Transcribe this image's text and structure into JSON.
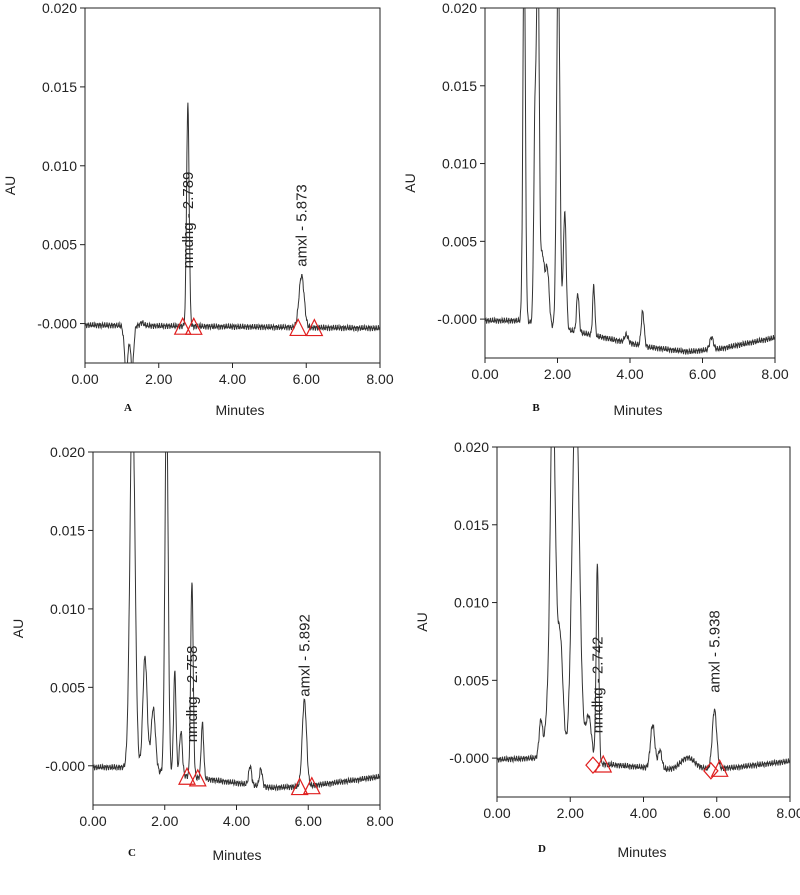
{
  "figure": {
    "panels": [
      "A",
      "B",
      "C",
      "D"
    ]
  },
  "chart_data": [
    {
      "id": "A",
      "type": "line",
      "panel_label": "A",
      "xlabel": "Minutes",
      "ylabel": "AU",
      "xlim": [
        0,
        8
      ],
      "ylim": [
        -0.0025,
        0.02
      ],
      "x_ticks": [
        "0.00",
        "2.00",
        "4.00",
        "6.00",
        "8.00"
      ],
      "y_ticks": [
        "-0.000",
        "0.005",
        "0.010",
        "0.015",
        "0.020"
      ],
      "y_tick_values": [
        0,
        0.005,
        0.01,
        0.015,
        0.02
      ],
      "baseline": [
        [
          0,
          -0.0001
        ],
        [
          8,
          -0.0003
        ]
      ],
      "peaks": [
        {
          "t": 1.12,
          "h": -0.0028,
          "w": 0.05
        },
        {
          "t": 1.28,
          "h": -0.0028,
          "w": 0.04
        },
        {
          "t": 1.55,
          "h": 0.0002,
          "w": 0.05
        },
        {
          "t": 2.789,
          "h": 0.014,
          "w": 0.035
        },
        {
          "t": 5.873,
          "h": 0.0033,
          "w": 0.07
        }
      ],
      "annotations": [
        {
          "label": "nmdhg - 2.789",
          "t": 2.789,
          "y": 0.0035
        },
        {
          "label": "amxl - 5.873",
          "t": 5.873,
          "y": 0.0036
        }
      ],
      "markers": [
        {
          "shape": "triangle",
          "t": 2.65
        },
        {
          "shape": "triangle",
          "t": 2.95
        },
        {
          "shape": "triangle",
          "t": 5.78
        },
        {
          "shape": "triangle",
          "t": 6.22
        }
      ]
    },
    {
      "id": "B",
      "type": "line",
      "panel_label": "B",
      "xlabel": "Minutes",
      "ylabel": "AU",
      "xlim": [
        0,
        8
      ],
      "ylim": [
        -0.0025,
        0.02
      ],
      "x_ticks": [
        "0.00",
        "2.00",
        "4.00",
        "6.00",
        "8.00"
      ],
      "y_ticks": [
        "-0.000",
        "0.005",
        "0.010",
        "0.015",
        "0.020"
      ],
      "y_tick_values": [
        0,
        0.005,
        0.01,
        0.015,
        0.02
      ],
      "baseline": [
        [
          0,
          -0.0001
        ],
        [
          1.0,
          -0.0001
        ],
        [
          2.5,
          -0.0008
        ],
        [
          4.5,
          -0.0018
        ],
        [
          5.6,
          -0.0021
        ],
        [
          6.5,
          -0.0019
        ],
        [
          8,
          -0.0012
        ]
      ],
      "peaks": [
        {
          "t": 1.08,
          "h": 0.024,
          "w": 0.035
        },
        {
          "t": 1.38,
          "h": 0.013,
          "w": 0.035
        },
        {
          "t": 1.46,
          "h": 0.024,
          "w": 0.035
        },
        {
          "t": 1.58,
          "h": 0.0045,
          "w": 0.06
        },
        {
          "t": 1.72,
          "h": 0.0035,
          "w": 0.05
        },
        {
          "t": 2.02,
          "h": 0.024,
          "w": 0.045
        },
        {
          "t": 2.2,
          "h": 0.0075,
          "w": 0.04
        },
        {
          "t": 2.56,
          "h": 0.0025,
          "w": 0.035
        },
        {
          "t": 3.0,
          "h": 0.0032,
          "w": 0.03
        },
        {
          "t": 3.9,
          "h": 0.0005,
          "w": 0.05
        },
        {
          "t": 4.35,
          "h": 0.0022,
          "w": 0.04
        },
        {
          "t": 6.25,
          "h": 0.0008,
          "w": 0.05
        }
      ],
      "annotations": [],
      "markers": []
    },
    {
      "id": "C",
      "type": "line",
      "panel_label": "C",
      "xlabel": "Minutes",
      "ylabel": "AU",
      "xlim": [
        0,
        8
      ],
      "ylim": [
        -0.0025,
        0.02
      ],
      "x_ticks": [
        "0.00",
        "2.00",
        "4.00",
        "6.00",
        "8.00"
      ],
      "y_ticks": [
        "-0.000",
        "0.005",
        "0.010",
        "0.015",
        "0.020"
      ],
      "y_tick_values": [
        0,
        0.005,
        0.01,
        0.015,
        0.02
      ],
      "baseline": [
        [
          0,
          -0.0001
        ],
        [
          1.0,
          -0.0001
        ],
        [
          3.0,
          -0.0008
        ],
        [
          5.0,
          -0.0014
        ],
        [
          6.0,
          -0.0013
        ],
        [
          8,
          -0.0007
        ]
      ],
      "peaks": [
        {
          "t": 1.1,
          "h": 0.024,
          "w": 0.07
        },
        {
          "t": 1.45,
          "h": 0.0072,
          "w": 0.06
        },
        {
          "t": 1.68,
          "h": 0.004,
          "w": 0.06
        },
        {
          "t": 2.05,
          "h": 0.024,
          "w": 0.045
        },
        {
          "t": 2.28,
          "h": 0.0065,
          "w": 0.035
        },
        {
          "t": 2.45,
          "h": 0.0028,
          "w": 0.04
        },
        {
          "t": 2.758,
          "h": 0.0125,
          "w": 0.035
        },
        {
          "t": 3.05,
          "h": 0.0035,
          "w": 0.035
        },
        {
          "t": 4.38,
          "h": 0.0012,
          "w": 0.04
        },
        {
          "t": 4.68,
          "h": 0.0011,
          "w": 0.04
        },
        {
          "t": 5.892,
          "h": 0.0055,
          "w": 0.06
        }
      ],
      "annotations": [
        {
          "label": "nmdhg - 2.758",
          "t": 2.758,
          "y": 0.0015
        },
        {
          "label": "amxl - 5.892",
          "t": 5.892,
          "y": 0.0044
        }
      ],
      "markers": [
        {
          "shape": "triangle",
          "t": 2.62
        },
        {
          "shape": "triangle",
          "t": 2.92
        },
        {
          "shape": "triangle",
          "t": 5.76
        },
        {
          "shape": "triangle",
          "t": 6.1
        }
      ]
    },
    {
      "id": "D",
      "type": "line",
      "panel_label": "D",
      "xlabel": "Minutes",
      "ylabel": "AU",
      "xlim": [
        0,
        8
      ],
      "ylim": [
        -0.0025,
        0.02
      ],
      "x_ticks": [
        "0.00",
        "2.00",
        "4.00",
        "6.00",
        "8.00"
      ],
      "y_ticks": [
        "-0.000",
        "0.005",
        "0.010",
        "0.015",
        "0.020"
      ],
      "y_tick_values": [
        0,
        0.005,
        0.01,
        0.015,
        0.02
      ],
      "baseline": [
        [
          0,
          -0.0001
        ],
        [
          1.0,
          0.0
        ],
        [
          3.5,
          -0.0005
        ],
        [
          5.0,
          -0.0008
        ],
        [
          6.5,
          -0.0006
        ],
        [
          8,
          -0.0002
        ]
      ],
      "peaks": [
        {
          "t": 1.2,
          "h": 0.0025,
          "w": 0.05
        },
        {
          "t": 1.35,
          "h": 0.002,
          "w": 0.05
        },
        {
          "t": 1.52,
          "h": 0.024,
          "w": 0.07
        },
        {
          "t": 1.72,
          "h": 0.008,
          "w": 0.08
        },
        {
          "t": 2.15,
          "h": 0.024,
          "w": 0.1
        },
        {
          "t": 2.5,
          "h": 0.003,
          "w": 0.08
        },
        {
          "t": 2.742,
          "h": 0.0128,
          "w": 0.035
        },
        {
          "t": 4.25,
          "h": 0.0028,
          "w": 0.06
        },
        {
          "t": 4.45,
          "h": 0.0012,
          "w": 0.05
        },
        {
          "t": 5.2,
          "h": 0.0008,
          "w": 0.2
        },
        {
          "t": 5.938,
          "h": 0.0038,
          "w": 0.06
        }
      ],
      "annotations": [
        {
          "label": "nmdhg - 2.742",
          "t": 2.742,
          "y": 0.0016
        },
        {
          "label": "amxl - 5.938",
          "t": 5.938,
          "y": 0.0042
        }
      ],
      "markers": [
        {
          "shape": "diamond",
          "t": 2.62
        },
        {
          "shape": "triangle",
          "t": 2.9
        },
        {
          "shape": "diamond",
          "t": 5.84
        },
        {
          "shape": "triangle",
          "t": 6.08
        }
      ]
    }
  ]
}
